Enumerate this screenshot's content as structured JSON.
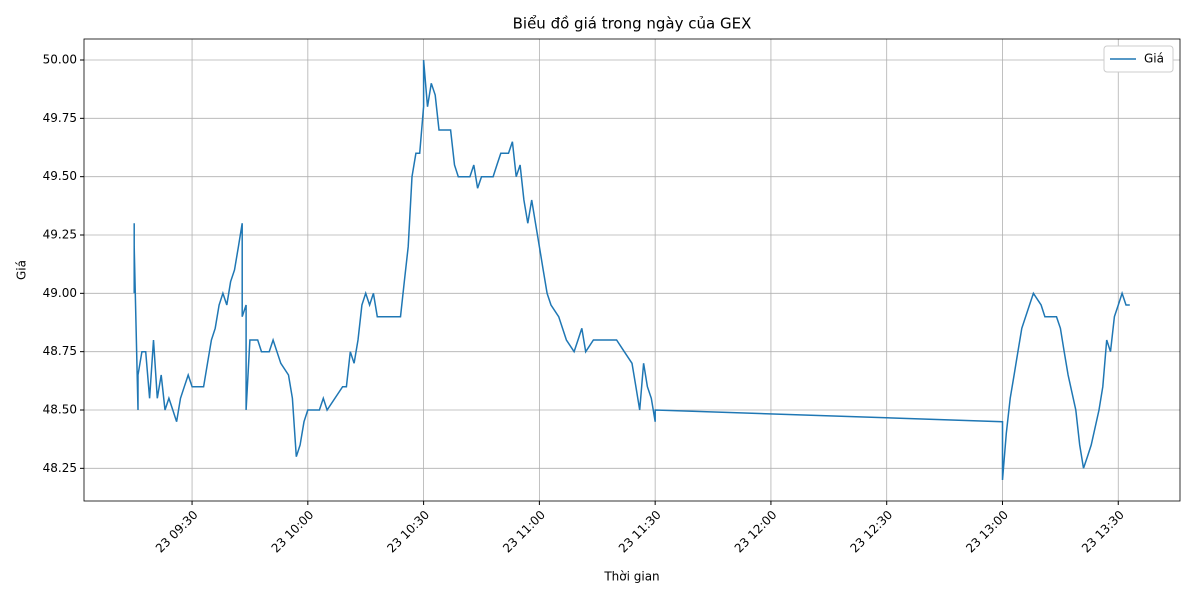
{
  "chart_data": {
    "type": "line",
    "title": "Biểu đồ giá trong ngày của GEX",
    "xlabel": "Thời gian",
    "ylabel": "Giá",
    "x": [
      "23 09:15",
      "23 09:15",
      "23 09:15",
      "23 09:16",
      "23 09:16",
      "23 09:17",
      "23 09:18",
      "23 09:19",
      "23 09:20",
      "23 09:21",
      "23 09:22",
      "23 09:23",
      "23 09:24",
      "23 09:25",
      "23 09:26",
      "23 09:27",
      "23 09:28",
      "23 09:29",
      "23 09:30",
      "23 09:33",
      "23 09:34",
      "23 09:35",
      "23 09:36",
      "23 09:37",
      "23 09:38",
      "23 09:39",
      "23 09:40",
      "23 09:41",
      "23 09:42",
      "23 09:43",
      "23 09:43",
      "23 09:44",
      "23 09:44",
      "23 09:45",
      "23 09:47",
      "23 09:48",
      "23 09:50",
      "23 09:51",
      "23 09:53",
      "23 09:55",
      "23 09:56",
      "23 09:57",
      "23 09:58",
      "23 09:59",
      "23 10:00",
      "23 10:03",
      "23 10:04",
      "23 10:05",
      "23 10:09",
      "23 10:10",
      "23 10:11",
      "23 10:12",
      "23 10:13",
      "23 10:14",
      "23 10:15",
      "23 10:16",
      "23 10:17",
      "23 10:18",
      "23 10:24",
      "23 10:25",
      "23 10:26",
      "23 10:27",
      "23 10:28",
      "23 10:29",
      "23 10:30",
      "23 10:30",
      "23 10:31",
      "23 10:32",
      "23 10:33",
      "23 10:34",
      "23 10:37",
      "23 10:38",
      "23 10:39",
      "23 10:42",
      "23 10:43",
      "23 10:44",
      "23 10:45",
      "23 10:48",
      "23 10:49",
      "23 10:50",
      "23 10:52",
      "23 10:53",
      "23 10:54",
      "23 10:55",
      "23 10:56",
      "23 10:57",
      "23 10:58",
      "23 10:59",
      "23 11:00",
      "23 11:01",
      "23 11:02",
      "23 11:03",
      "23 11:05",
      "23 11:07",
      "23 11:09",
      "23 11:10",
      "23 11:11",
      "23 11:12",
      "23 11:14",
      "23 11:20",
      "23 11:22",
      "23 11:24",
      "23 11:25",
      "23 11:26",
      "23 11:27",
      "23 11:28",
      "23 11:29",
      "23 11:30",
      "23 11:30",
      "23 13:00",
      "23 13:00",
      "23 13:01",
      "23 13:02",
      "23 13:03",
      "23 13:04",
      "23 13:05",
      "23 13:07",
      "23 13:08",
      "23 13:10",
      "23 13:11",
      "23 13:14",
      "23 13:15",
      "23 13:16",
      "23 13:17",
      "23 13:19",
      "23 13:20",
      "23 13:21",
      "23 13:22",
      "23 13:23",
      "23 13:25",
      "23 13:26",
      "23 13:27",
      "23 13:28",
      "23 13:29",
      "23 13:30",
      "23 13:31",
      "23 13:32",
      "23 13:33"
    ],
    "series": [
      {
        "name": "Giá",
        "color": "#1f77b4",
        "values": [
          49.3,
          49.0,
          49.2,
          48.5,
          48.65,
          48.75,
          48.75,
          48.55,
          48.8,
          48.55,
          48.65,
          48.5,
          48.55,
          48.5,
          48.45,
          48.55,
          48.6,
          48.65,
          48.6,
          48.6,
          48.7,
          48.8,
          48.85,
          48.95,
          49.0,
          48.95,
          49.05,
          49.1,
          49.2,
          49.3,
          48.9,
          48.95,
          48.5,
          48.8,
          48.8,
          48.75,
          48.75,
          48.8,
          48.7,
          48.65,
          48.55,
          48.3,
          48.35,
          48.45,
          48.5,
          48.5,
          48.55,
          48.5,
          48.6,
          48.6,
          48.75,
          48.7,
          48.8,
          48.95,
          49.0,
          48.95,
          49.0,
          48.9,
          48.9,
          49.05,
          49.2,
          49.5,
          49.6,
          49.6,
          49.8,
          50.0,
          49.8,
          49.9,
          49.85,
          49.7,
          49.7,
          49.55,
          49.5,
          49.5,
          49.55,
          49.45,
          49.5,
          49.5,
          49.55,
          49.6,
          49.6,
          49.65,
          49.5,
          49.55,
          49.4,
          49.3,
          49.4,
          49.3,
          49.2,
          49.1,
          49.0,
          48.95,
          48.9,
          48.8,
          48.75,
          48.8,
          48.85,
          48.75,
          48.8,
          48.8,
          48.75,
          48.7,
          48.6,
          48.5,
          48.7,
          48.6,
          48.55,
          48.45,
          48.5,
          48.45,
          48.2,
          48.4,
          48.55,
          48.65,
          48.75,
          48.85,
          48.95,
          49.0,
          48.95,
          48.9,
          48.9,
          48.85,
          48.75,
          48.65,
          48.5,
          48.35,
          48.25,
          48.3,
          48.35,
          48.5,
          48.6,
          48.8,
          48.75,
          48.9,
          48.95,
          49.0,
          48.95,
          48.95
        ]
      }
    ],
    "xlim": [
      "23 09:02",
      "23 13:46"
    ],
    "xticks": [
      "23 09:30",
      "23 10:00",
      "23 10:30",
      "23 11:00",
      "23 11:30",
      "23 12:00",
      "23 12:30",
      "23 13:00",
      "23 13:30"
    ],
    "ylim": [
      48.11,
      50.09
    ],
    "yticks": [
      48.25,
      {
        "value": 48.5,
        "label": "48.50"
      },
      48.75,
      {
        "value": 49,
        "label": "49.00"
      },
      49.25,
      {
        "value": 49.5,
        "label": "49.50"
      },
      49.75,
      {
        "value": 50,
        "label": "50.00"
      }
    ],
    "grid": true,
    "legend": "upper right"
  }
}
